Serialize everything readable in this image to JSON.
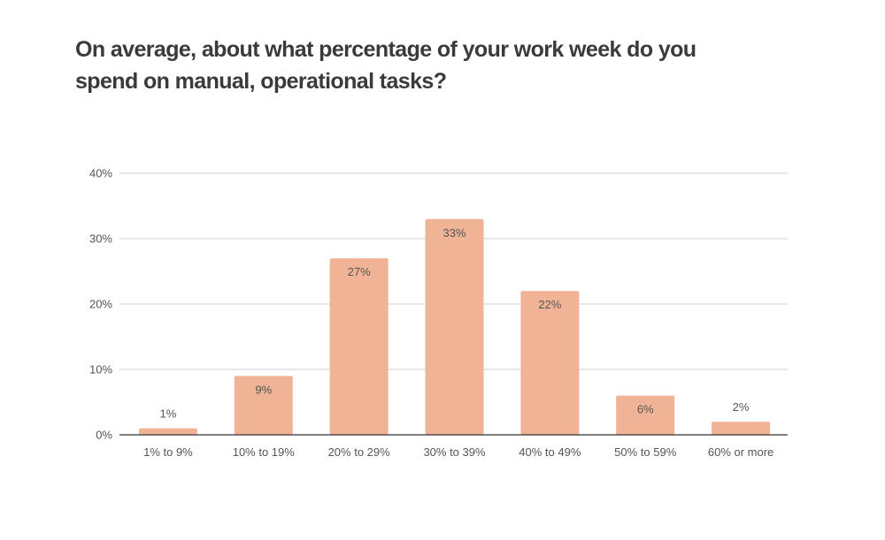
{
  "chart_data": {
    "type": "bar",
    "title": "On average, about what percentage of your work week do you spend on manual, operational tasks?",
    "categories": [
      "1% to 9%",
      "10% to 19%",
      "20% to 29%",
      "30% to 39%",
      "40% to 49%",
      "50% to 59%",
      "60% or more"
    ],
    "values": [
      1,
      9,
      27,
      33,
      22,
      6,
      2
    ],
    "value_labels": [
      "1%",
      "9%",
      "27%",
      "33%",
      "22%",
      "6%",
      "2%"
    ],
    "ylim": [
      0,
      40
    ],
    "yticks": [
      0,
      10,
      20,
      30,
      40
    ],
    "ytick_labels": [
      "0%",
      "10%",
      "20%",
      "30%",
      "40%"
    ],
    "xlabel": "",
    "ylabel": "",
    "grid": true,
    "bar_color": "#f0b396",
    "grid_color": "#d0d0d0",
    "axis_color": "#333333"
  }
}
